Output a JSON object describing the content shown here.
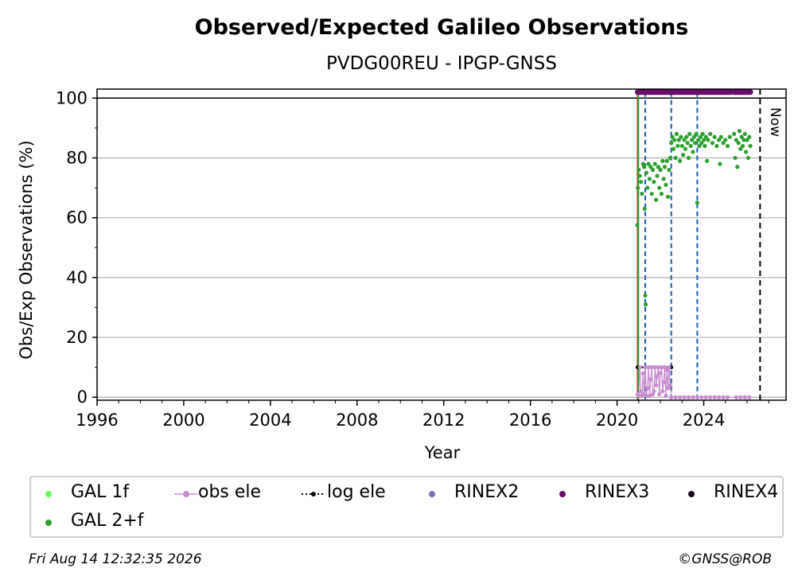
{
  "title": "Observed/Expected Galileo Observations",
  "subtitle": "PVDG00REU - IPGP-GNSS",
  "footer": {
    "date": "Fri Aug 14 12:32:35 2026",
    "copyright": "©GNSS@ROB"
  },
  "colors": {
    "gal1f": "#66ff55",
    "gal2f": "#2ca02c",
    "obs_ele": "#c88bd0",
    "log_ele": "#000000",
    "rinex2": "#8070b8",
    "rinex3": "#6a0a6a",
    "rinex4": "#1a0020",
    "event_red": "#d62728",
    "event_blue": "#1060b0",
    "now_line": "#000000"
  },
  "chart_data": {
    "type": "scatter",
    "title": "Observed/Expected Galileo Observations",
    "subtitle": "PVDG00REU - IPGP-GNSS",
    "xlabel": "Year",
    "ylabel": "Obs/Exp Observations (%)",
    "xlim": [
      1996,
      2027.8
    ],
    "ylim": [
      -1,
      103
    ],
    "xticks": [
      "1996",
      "2000",
      "2004",
      "2008",
      "2012",
      "2016",
      "2020",
      "2024"
    ],
    "yticks": [
      "0",
      "20",
      "40",
      "60",
      "80",
      "100"
    ],
    "grid": "horizontal",
    "reference_line_y": 100,
    "now_label": "Now",
    "now_x": 2026.6,
    "event_lines": [
      {
        "x": 2020.95,
        "color": "red"
      },
      {
        "x": 2020.98,
        "color": "green"
      },
      {
        "x": 2021.3,
        "color": "blue"
      },
      {
        "x": 2022.5,
        "color": "blue"
      },
      {
        "x": 2023.7,
        "color": "blue"
      }
    ],
    "legend": [
      "GAL 1f",
      "obs ele",
      "log ele",
      "RINEX2",
      "RINEX3",
      "RINEX4",
      "GAL 2+f"
    ],
    "series": [
      {
        "name": "GAL 2+f",
        "points": [
          [
            2020.93,
            57.5
          ],
          [
            2020.96,
            70
          ],
          [
            2021.0,
            76
          ],
          [
            2021.05,
            74
          ],
          [
            2021.1,
            72
          ],
          [
            2021.15,
            68
          ],
          [
            2021.2,
            78
          ],
          [
            2021.25,
            77
          ],
          [
            2021.27,
            63
          ],
          [
            2021.3,
            34
          ],
          [
            2021.32,
            31
          ],
          [
            2021.35,
            75
          ],
          [
            2021.4,
            70
          ],
          [
            2021.45,
            78
          ],
          [
            2021.5,
            73
          ],
          [
            2021.55,
            77
          ],
          [
            2021.6,
            68
          ],
          [
            2021.65,
            76
          ],
          [
            2021.7,
            72
          ],
          [
            2021.75,
            78
          ],
          [
            2021.8,
            66
          ],
          [
            2021.85,
            74
          ],
          [
            2021.9,
            77
          ],
          [
            2021.95,
            70
          ],
          [
            2022.0,
            76
          ],
          [
            2022.05,
            68
          ],
          [
            2022.1,
            79
          ],
          [
            2022.15,
            73
          ],
          [
            2022.2,
            77
          ],
          [
            2022.25,
            71
          ],
          [
            2022.3,
            79
          ],
          [
            2022.35,
            67
          ],
          [
            2022.4,
            76
          ],
          [
            2022.45,
            80
          ],
          [
            2022.5,
            85
          ],
          [
            2022.55,
            87
          ],
          [
            2022.6,
            83
          ],
          [
            2022.65,
            86
          ],
          [
            2022.7,
            80
          ],
          [
            2022.75,
            88
          ],
          [
            2022.8,
            84
          ],
          [
            2022.85,
            86
          ],
          [
            2022.9,
            79
          ],
          [
            2022.95,
            87
          ],
          [
            2023.0,
            84
          ],
          [
            2023.05,
            81
          ],
          [
            2023.1,
            86
          ],
          [
            2023.15,
            83
          ],
          [
            2023.2,
            87
          ],
          [
            2023.25,
            85
          ],
          [
            2023.3,
            80
          ],
          [
            2023.35,
            88
          ],
          [
            2023.4,
            84
          ],
          [
            2023.45,
            86
          ],
          [
            2023.5,
            82
          ],
          [
            2023.55,
            87
          ],
          [
            2023.6,
            85
          ],
          [
            2023.65,
            88
          ],
          [
            2023.7,
            65
          ],
          [
            2023.75,
            86
          ],
          [
            2023.8,
            84
          ],
          [
            2023.85,
            87
          ],
          [
            2023.9,
            85
          ],
          [
            2023.95,
            88
          ],
          [
            2024.0,
            86
          ],
          [
            2024.05,
            84
          ],
          [
            2024.1,
            87
          ],
          [
            2024.15,
            79
          ],
          [
            2024.2,
            86
          ],
          [
            2024.3,
            88
          ],
          [
            2024.4,
            85
          ],
          [
            2024.5,
            87
          ],
          [
            2024.6,
            84
          ],
          [
            2024.7,
            86
          ],
          [
            2024.75,
            78
          ],
          [
            2024.8,
            87
          ],
          [
            2024.9,
            85
          ],
          [
            2025.0,
            86
          ],
          [
            2025.1,
            84
          ],
          [
            2025.2,
            87
          ],
          [
            2025.4,
            88
          ],
          [
            2025.45,
            80
          ],
          [
            2025.5,
            86
          ],
          [
            2025.55,
            77
          ],
          [
            2025.6,
            85
          ],
          [
            2025.65,
            89
          ],
          [
            2025.7,
            83
          ],
          [
            2025.75,
            87
          ],
          [
            2025.8,
            84
          ],
          [
            2025.85,
            86
          ],
          [
            2025.9,
            88
          ],
          [
            2025.95,
            82
          ],
          [
            2026.0,
            86
          ],
          [
            2026.05,
            80
          ],
          [
            2026.1,
            87
          ],
          [
            2026.15,
            84
          ]
        ]
      },
      {
        "name": "obs ele",
        "points": [
          [
            2020.95,
            1
          ],
          [
            2021.0,
            0.5
          ],
          [
            2021.05,
            10
          ],
          [
            2021.1,
            2
          ],
          [
            2021.15,
            0.5
          ],
          [
            2021.2,
            8
          ],
          [
            2021.25,
            1
          ],
          [
            2021.3,
            10
          ],
          [
            2021.35,
            0.5
          ],
          [
            2021.4,
            3
          ],
          [
            2021.45,
            10
          ],
          [
            2021.5,
            0.5
          ],
          [
            2021.55,
            6
          ],
          [
            2021.6,
            10
          ],
          [
            2021.65,
            1
          ],
          [
            2021.7,
            2
          ],
          [
            2021.75,
            10
          ],
          [
            2021.8,
            4
          ],
          [
            2021.85,
            7
          ],
          [
            2021.9,
            10
          ],
          [
            2021.95,
            1
          ],
          [
            2022.0,
            8
          ],
          [
            2022.05,
            10
          ],
          [
            2022.1,
            2
          ],
          [
            2022.15,
            5
          ],
          [
            2022.2,
            10
          ],
          [
            2022.25,
            0.5
          ],
          [
            2022.3,
            9
          ],
          [
            2022.35,
            3
          ],
          [
            2022.4,
            10
          ],
          [
            2022.45,
            4
          ],
          [
            2022.5,
            0
          ],
          [
            2022.7,
            0
          ],
          [
            2022.9,
            0
          ],
          [
            2023.1,
            0
          ],
          [
            2023.3,
            0
          ],
          [
            2023.5,
            0
          ],
          [
            2023.7,
            0
          ],
          [
            2023.9,
            0
          ],
          [
            2024.1,
            0
          ],
          [
            2024.3,
            0
          ],
          [
            2024.5,
            0
          ],
          [
            2024.7,
            0
          ],
          [
            2024.9,
            0
          ],
          [
            2025.1,
            0
          ],
          [
            2025.5,
            0
          ],
          [
            2025.7,
            0
          ],
          [
            2025.9,
            0
          ],
          [
            2026.1,
            0
          ]
        ]
      },
      {
        "name": "log ele",
        "points": [
          [
            2020.95,
            10
          ],
          [
            2021.3,
            10
          ],
          [
            2021.6,
            10
          ],
          [
            2021.9,
            10
          ],
          [
            2022.2,
            10
          ],
          [
            2022.5,
            10
          ]
        ]
      },
      {
        "name": "RINEX3",
        "points": [
          [
            2020.95,
            102
          ],
          [
            2025.25,
            102
          ],
          [
            2025.4,
            102
          ],
          [
            2026.15,
            102
          ]
        ]
      }
    ]
  }
}
